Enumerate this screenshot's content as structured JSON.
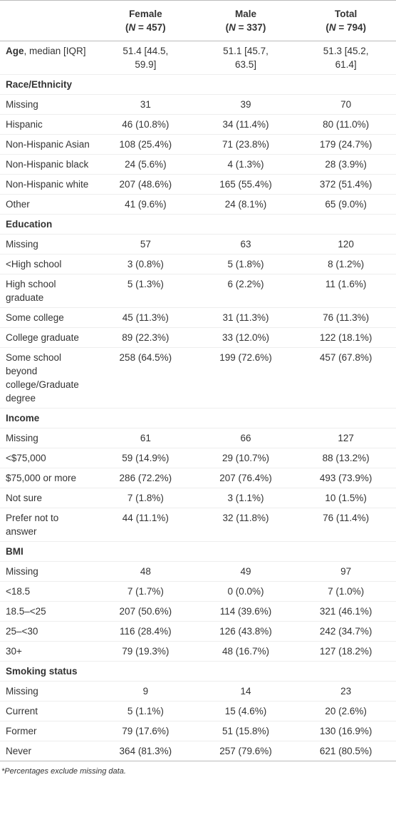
{
  "header": {
    "columns": [
      {
        "label": "Female",
        "n": [
          "(",
          "N",
          " = 457)"
        ]
      },
      {
        "label": "Male",
        "n": [
          "(",
          "N",
          " = 337)"
        ]
      },
      {
        "label": "Total",
        "n": [
          "(",
          "N",
          " = 794)"
        ]
      }
    ]
  },
  "table": {
    "age": {
      "label_bold": "Age",
      "label": ", median [IQR]",
      "values": [
        "51.4 [44.5, 59.9]",
        "51.1 [45.7, 63.5]",
        "51.3 [45.2, 61.4]"
      ]
    },
    "sections": [
      {
        "title": "Race/Ethnicity",
        "rows": [
          [
            "Missing",
            "31",
            "39",
            "70"
          ],
          [
            "Hispanic",
            "46 (10.8%)",
            "34 (11.4%)",
            "80 (11.0%)"
          ],
          [
            "Non-Hispanic Asian",
            "108 (25.4%)",
            "71 (23.8%)",
            "179 (24.7%)"
          ],
          [
            "Non-Hispanic black",
            "24 (5.6%)",
            "4 (1.3%)",
            "28 (3.9%)"
          ],
          [
            "Non-Hispanic white",
            "207 (48.6%)",
            "165 (55.4%)",
            "372 (51.4%)"
          ],
          [
            "Other",
            "41 (9.6%)",
            "24 (8.1%)",
            "65 (9.0%)"
          ]
        ]
      },
      {
        "title": "Education",
        "rows": [
          [
            "Missing",
            "57",
            "63",
            "120"
          ],
          [
            "<High school",
            "3 (0.8%)",
            "5 (1.8%)",
            "8 (1.2%)"
          ],
          [
            "High school graduate",
            "5 (1.3%)",
            "6 (2.2%)",
            "11 (1.6%)"
          ],
          [
            "Some college",
            "45 (11.3%)",
            "31 (11.3%)",
            "76 (11.3%)"
          ],
          [
            "College graduate",
            "89 (22.3%)",
            "33 (12.0%)",
            "122 (18.1%)"
          ],
          [
            "Some school beyond college/Graduate degree",
            "258 (64.5%)",
            "199 (72.6%)",
            "457 (67.8%)"
          ]
        ]
      },
      {
        "title": "Income",
        "rows": [
          [
            "Missing",
            "61",
            "66",
            "127"
          ],
          [
            "<$75,000",
            "59 (14.9%)",
            "29 (10.7%)",
            "88 (13.2%)"
          ],
          [
            "$75,000 or more",
            "286 (72.2%)",
            "207 (76.4%)",
            "493 (73.9%)"
          ],
          [
            "Not sure",
            "7 (1.8%)",
            "3 (1.1%)",
            "10 (1.5%)"
          ],
          [
            "Prefer not to answer",
            "44 (11.1%)",
            "32 (11.8%)",
            "76 (11.4%)"
          ]
        ]
      },
      {
        "title": "BMI",
        "rows": [
          [
            "Missing",
            "48",
            "49",
            "97"
          ],
          [
            "<18.5",
            "7 (1.7%)",
            "0 (0.0%)",
            "7 (1.0%)"
          ],
          [
            "18.5–<25",
            "207 (50.6%)",
            "114 (39.6%)",
            "321 (46.1%)"
          ],
          [
            "25–<30",
            "116 (28.4%)",
            "126 (43.8%)",
            "242 (34.7%)"
          ],
          [
            "30+",
            "79 (19.3%)",
            "48 (16.7%)",
            "127 (18.2%)"
          ]
        ]
      },
      {
        "title": "Smoking status",
        "rows": [
          [
            "Missing",
            "9",
            "14",
            "23"
          ],
          [
            "Current",
            "5 (1.1%)",
            "15 (4.6%)",
            "20 (2.6%)"
          ],
          [
            "Former",
            "79 (17.6%)",
            "51 (15.8%)",
            "130 (16.9%)"
          ],
          [
            "Never",
            "364 (81.3%)",
            "257 (79.6%)",
            "621 (80.5%)"
          ]
        ]
      }
    ]
  },
  "footnote": "*Percentages exclude missing data."
}
